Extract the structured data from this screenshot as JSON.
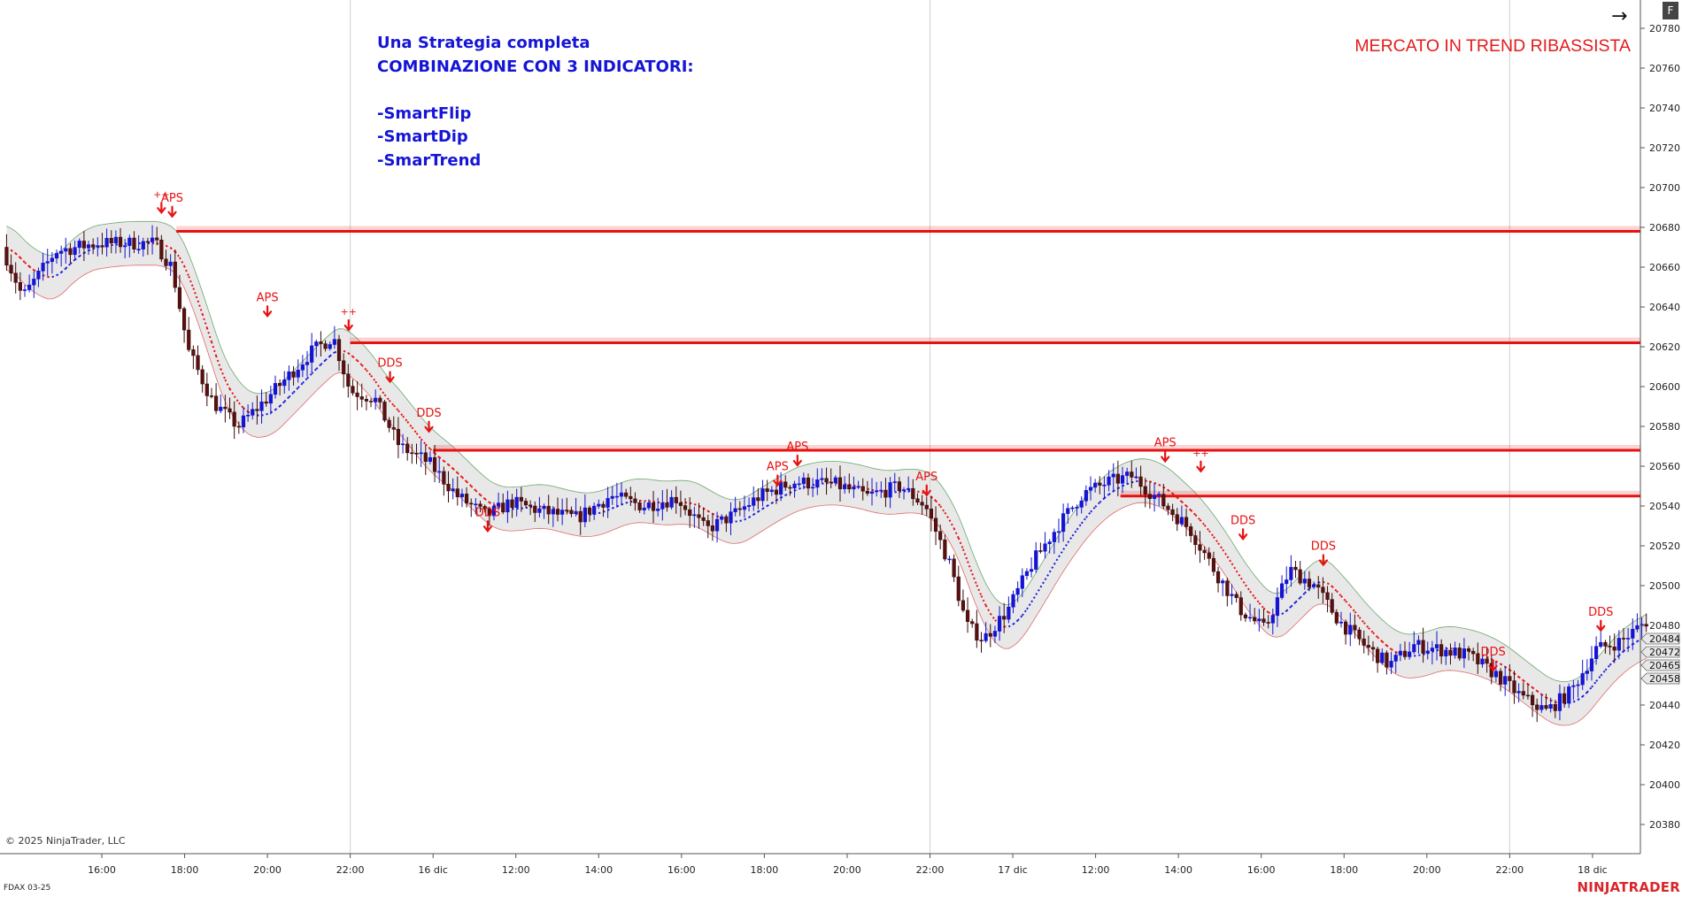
{
  "texts": {
    "strategy_lines": [
      "Una Strategia completa",
      "COMBINAZIONE CON 3 INDICATORI:",
      "",
      "-SmartFlip",
      "-SmartDip",
      "-SmarTrend"
    ],
    "trend_label": "MERCATO IN TREND RIBASSISTA",
    "copyright": "© 2025 NinjaTrader, LLC",
    "instrument": "FDAX 03-25",
    "brand": "NINJATRADER",
    "corner_button": "F"
  },
  "icons": {
    "corner_arrow": "arrow-right-icon",
    "signal_arrow": "arrow-down-icon"
  },
  "colors": {
    "bull_candle": "#1414d2",
    "bear_candle": "#3a0a0a",
    "resistance": "#e81010",
    "band_fill": "#d8d8d8",
    "signal": "#e81010",
    "trend_text": "#e41b1b",
    "strategy_text": "#1515d6"
  },
  "chart_data": {
    "type": "candlestick",
    "instrument": "FDAX 03-25",
    "ylim": [
      20375,
      20795
    ],
    "y_ticks": [
      20380,
      20400,
      20420,
      20440,
      20460,
      20480,
      20500,
      20520,
      20540,
      20560,
      20580,
      20600,
      20620,
      20640,
      20660,
      20680,
      20700,
      20720,
      20740,
      20760,
      20780
    ],
    "x_ticks": [
      "16:00",
      "18:00",
      "20:00",
      "22:00",
      "16 dic",
      "12:00",
      "14:00",
      "16:00",
      "18:00",
      "20:00",
      "22:00",
      "17 dic",
      "12:00",
      "14:00",
      "16:00",
      "18:00",
      "20:00",
      "22:00",
      "18 dic"
    ],
    "session_separators": [
      "22:00",
      "22:00",
      "22:00"
    ],
    "price_labels": [
      20484,
      20472,
      20465,
      20458
    ],
    "resistance_levels": [
      {
        "price": 20678,
        "from_tick": 0.9
      },
      {
        "price": 20622,
        "from_tick": 3.0
      },
      {
        "price": 20568,
        "from_tick": 4.0
      },
      {
        "price": 20545,
        "from_tick": 12.3
      }
    ],
    "signals": [
      {
        "text": "APS",
        "tick": 0.85,
        "price": 20693
      },
      {
        "text": "++",
        "tick": 0.72,
        "price": 20695
      },
      {
        "text": "APS",
        "tick": 2.0,
        "price": 20643
      },
      {
        "text": "++",
        "tick": 2.98,
        "price": 20636
      },
      {
        "text": "DDS",
        "tick": 3.48,
        "price": 20610
      },
      {
        "text": "DDS",
        "tick": 3.95,
        "price": 20585
      },
      {
        "text": "DDS",
        "tick": 4.66,
        "price": 20535
      },
      {
        "text": "APS",
        "tick": 8.4,
        "price": 20568
      },
      {
        "text": "APS",
        "tick": 8.16,
        "price": 20558
      },
      {
        "text": "APS",
        "tick": 9.96,
        "price": 20553
      },
      {
        "text": "APS",
        "tick": 12.84,
        "price": 20570
      },
      {
        "text": "++",
        "tick": 13.27,
        "price": 20565
      },
      {
        "text": "DDS",
        "tick": 13.78,
        "price": 20531
      },
      {
        "text": "DDS",
        "tick": 14.75,
        "price": 20518
      },
      {
        "text": "DDS",
        "tick": 16.8,
        "price": 20465
      },
      {
        "text": "DDS",
        "tick": 18.1,
        "price": 20485
      }
    ],
    "price_path": [
      [
        -1.15,
        20670
      ],
      [
        -0.9,
        20645
      ],
      [
        -0.5,
        20668
      ],
      [
        0.0,
        20672
      ],
      [
        0.7,
        20672
      ],
      [
        0.9,
        20660
      ],
      [
        1.1,
        20618
      ],
      [
        1.4,
        20592
      ],
      [
        1.7,
        20580
      ],
      [
        2.0,
        20592
      ],
      [
        2.3,
        20605
      ],
      [
        2.6,
        20618
      ],
      [
        2.85,
        20625
      ],
      [
        3.05,
        20598
      ],
      [
        3.35,
        20594
      ],
      [
        3.65,
        20570
      ],
      [
        4.0,
        20562
      ],
      [
        4.35,
        20545
      ],
      [
        4.7,
        20535
      ],
      [
        5.0,
        20542
      ],
      [
        5.4,
        20537
      ],
      [
        5.8,
        20534
      ],
      [
        6.2,
        20545
      ],
      [
        6.6,
        20540
      ],
      [
        7.0,
        20544
      ],
      [
        7.35,
        20528
      ],
      [
        7.7,
        20536
      ],
      [
        8.0,
        20545
      ],
      [
        8.4,
        20552
      ],
      [
        8.9,
        20551
      ],
      [
        9.3,
        20545
      ],
      [
        9.7,
        20550
      ],
      [
        10.0,
        20540
      ],
      [
        10.3,
        20510
      ],
      [
        10.5,
        20480
      ],
      [
        10.7,
        20473
      ],
      [
        11.0,
        20488
      ],
      [
        11.3,
        20512
      ],
      [
        11.6,
        20530
      ],
      [
        11.9,
        20546
      ],
      [
        12.2,
        20552
      ],
      [
        12.5,
        20555
      ],
      [
        12.9,
        20540
      ],
      [
        13.2,
        20528
      ],
      [
        13.5,
        20507
      ],
      [
        13.8,
        20488
      ],
      [
        14.1,
        20478
      ],
      [
        14.4,
        20508
      ],
      [
        14.7,
        20500
      ],
      [
        15.0,
        20482
      ],
      [
        15.3,
        20470
      ],
      [
        15.6,
        20460
      ],
      [
        15.9,
        20470
      ],
      [
        16.2,
        20468
      ],
      [
        16.55,
        20465
      ],
      [
        16.9,
        20455
      ],
      [
        17.2,
        20444
      ],
      [
        17.5,
        20437
      ],
      [
        17.8,
        20447
      ],
      [
        18.1,
        20468
      ],
      [
        18.4,
        20472
      ],
      [
        18.7,
        20482
      ]
    ]
  }
}
